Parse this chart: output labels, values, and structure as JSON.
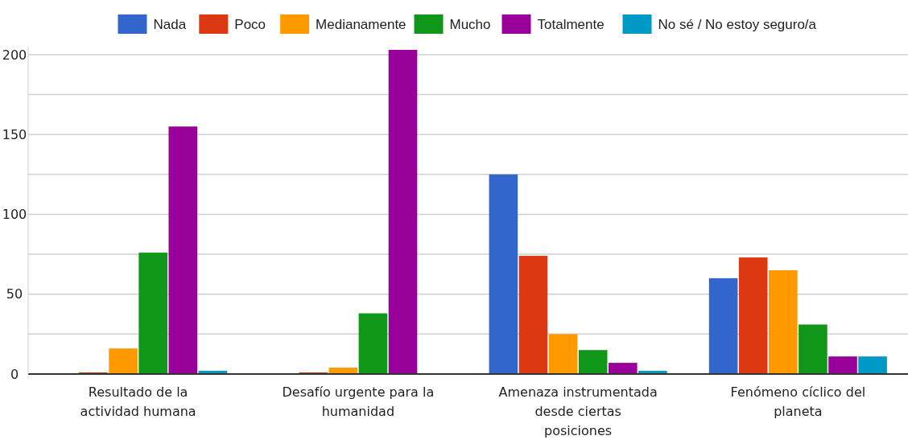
{
  "chart_data": {
    "type": "bar",
    "categories": [
      "Resultado de la actividad humana",
      "Desafío urgente para la humanidad",
      "Amenaza instrumentada desde ciertas posiciones",
      "Fenómeno cíclico del planeta"
    ],
    "series": [
      {
        "name": "Nada",
        "color": "#3366cc",
        "values": [
          0,
          0,
          125,
          60
        ]
      },
      {
        "name": "Poco",
        "color": "#dc3912",
        "values": [
          1,
          1,
          74,
          73
        ]
      },
      {
        "name": "Medianamente",
        "color": "#ff9900",
        "values": [
          16,
          4,
          25,
          65
        ]
      },
      {
        "name": "Mucho",
        "color": "#109618",
        "values": [
          76,
          38,
          15,
          31
        ]
      },
      {
        "name": "Totalmente",
        "color": "#990099",
        "values": [
          155,
          203,
          7,
          11
        ]
      },
      {
        "name": "No sé / No estoy seguro/a",
        "color": "#0099c6",
        "values": [
          2,
          0,
          2,
          11
        ]
      }
    ],
    "ylim": [
      0,
      205
    ],
    "yticks": [
      0,
      {
        "value": 25,
        "label": null
      },
      50,
      {
        "value": 75,
        "label": null
      },
      100,
      {
        "value": 125,
        "label": null
      },
      150,
      {
        "value": 175,
        "label": null
      },
      200
    ],
    "grid": true,
    "legend": "top"
  }
}
